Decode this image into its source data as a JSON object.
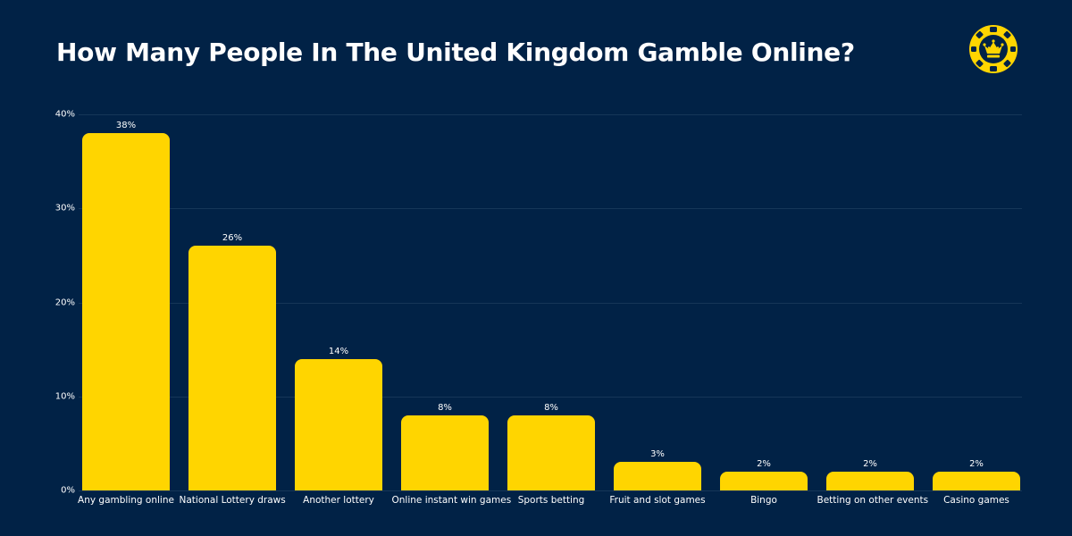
{
  "title": "How Many People In The United Kingdom Gamble Online?",
  "logo": {
    "icon": "casino-chip-crown-icon",
    "color": "#FFD500"
  },
  "colors": {
    "background": "#012246",
    "bar": "#FFD500",
    "gridline": "#163658",
    "text": "#FFFFFF"
  },
  "chart_data": {
    "type": "bar",
    "title": "How Many People In The United Kingdom Gamble Online?",
    "xlabel": "",
    "ylabel": "",
    "ylim": [
      0,
      40
    ],
    "yticks": [
      "0%",
      "10%",
      "20%",
      "30%",
      "40%"
    ],
    "grid": true,
    "legend": null,
    "categories": [
      "Any gambling online",
      "National Lottery draws",
      "Another lottery",
      "Online instant win games",
      "Sports betting",
      "Fruit and slot games",
      "Bingo",
      "Betting on other events",
      "Casino games"
    ],
    "values": [
      38,
      26,
      14,
      8,
      8,
      3,
      2,
      2,
      2
    ],
    "value_labels": [
      "38%",
      "26%",
      "14%",
      "8%",
      "8%",
      "3%",
      "2%",
      "2%",
      "2%"
    ]
  }
}
